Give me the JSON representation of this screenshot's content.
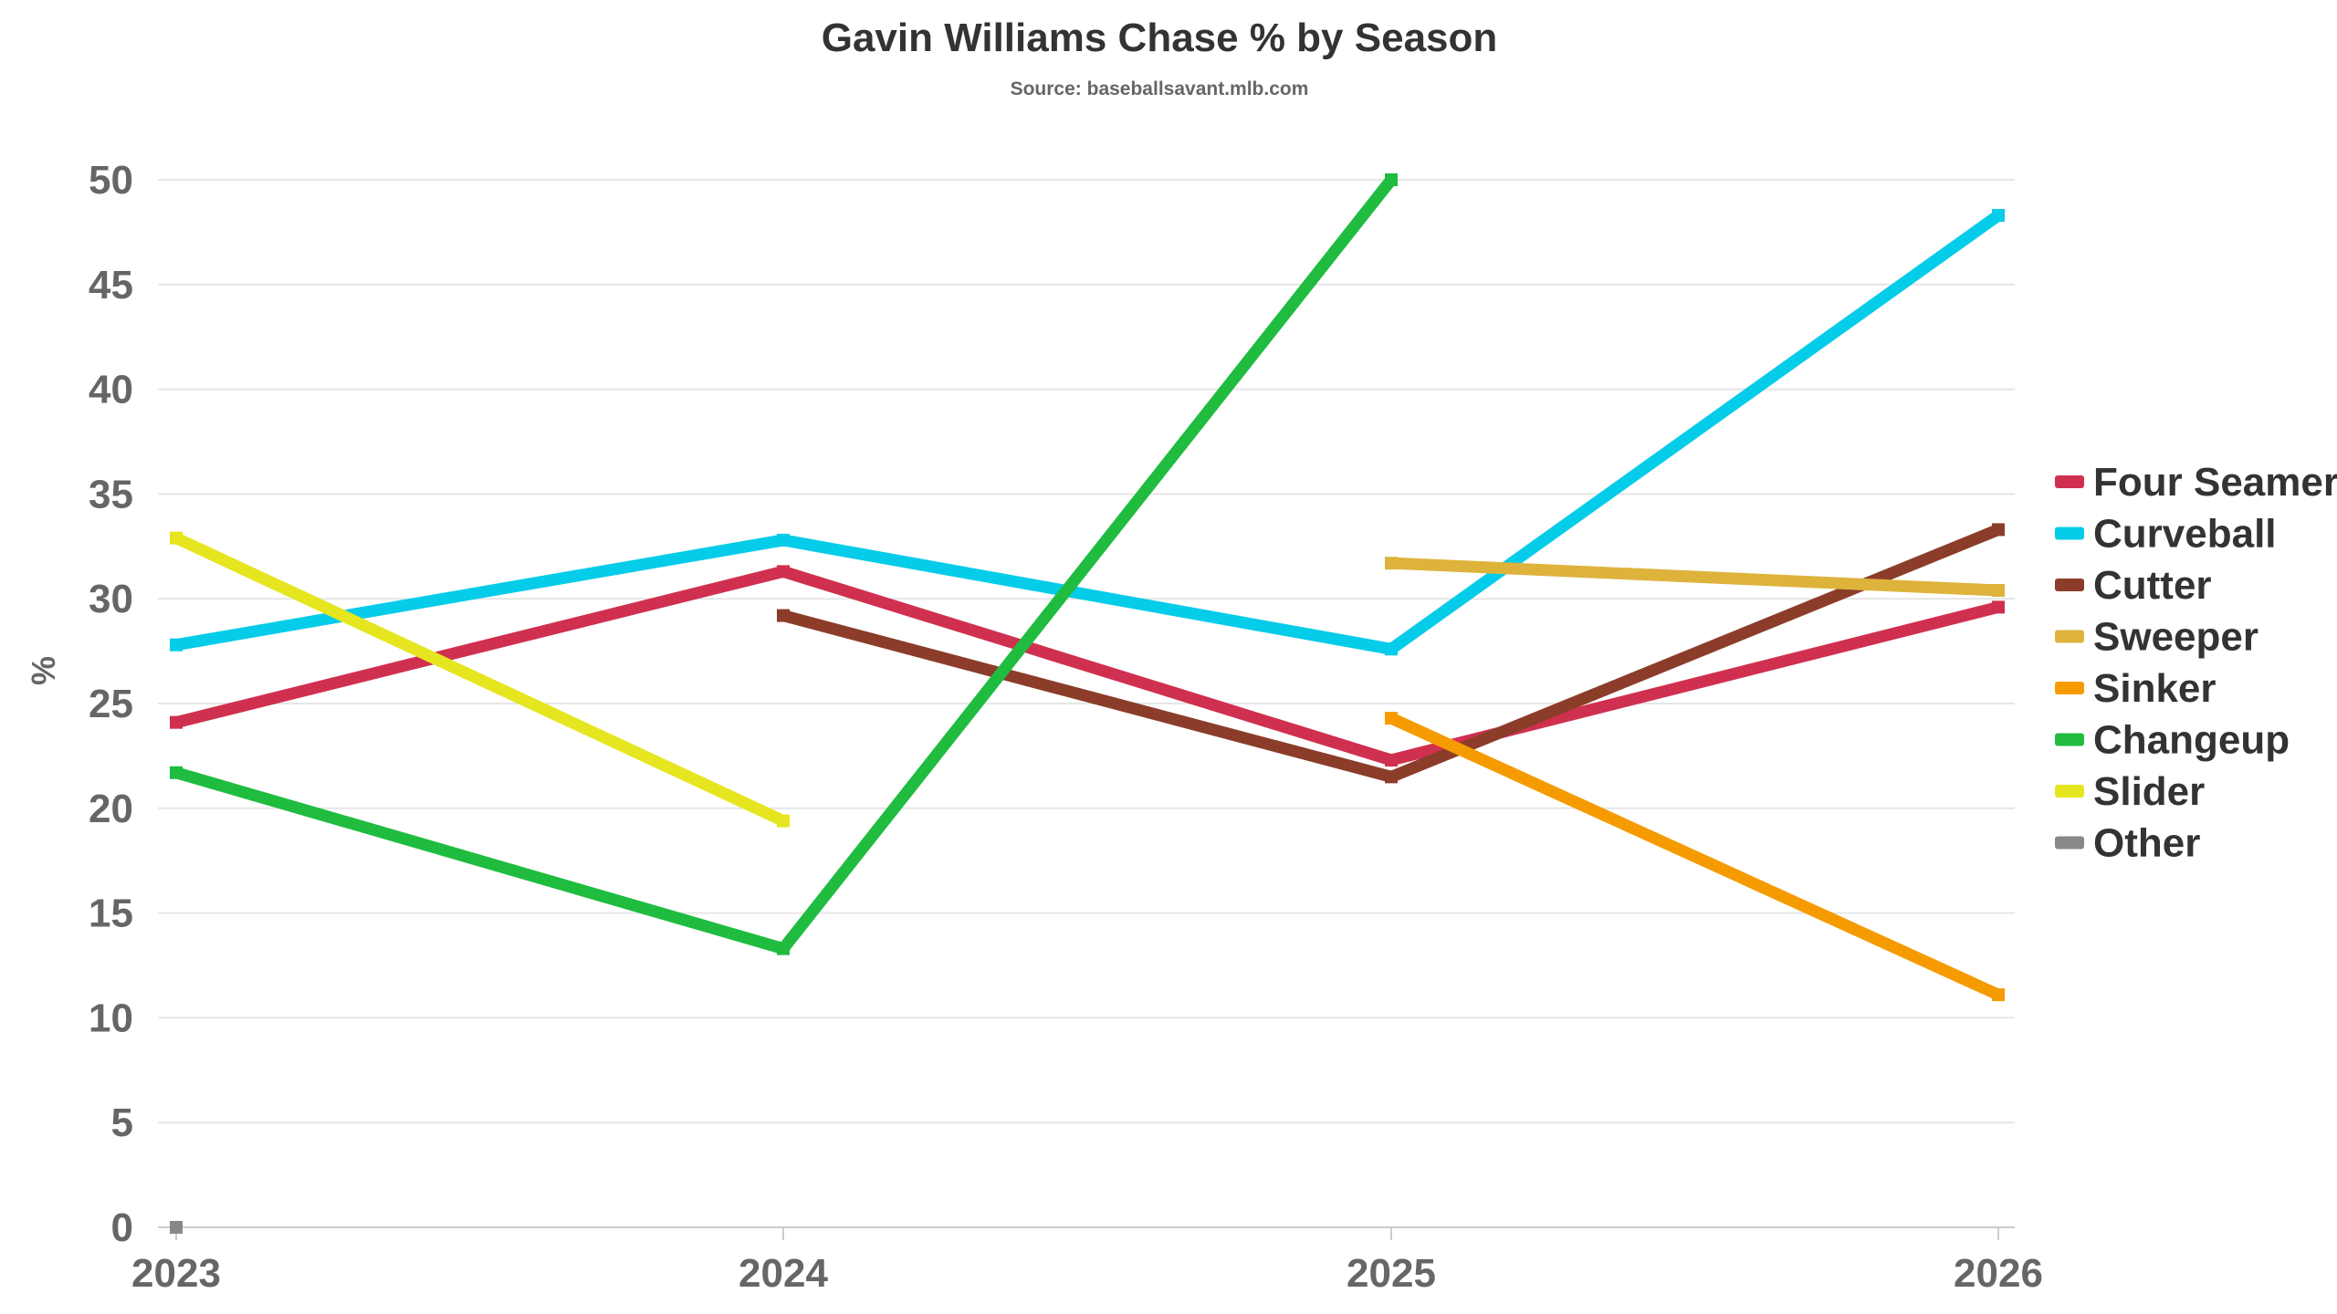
{
  "chart_data": {
    "type": "line",
    "title": "Gavin Williams Chase % by Season",
    "subtitle": "Source: baseballsavant.mlb.com",
    "xlabel": "",
    "ylabel": "%",
    "x": [
      "2023",
      "2024",
      "2025",
      "2026"
    ],
    "ylim": [
      0,
      50
    ],
    "yticks": [
      0,
      5,
      10,
      15,
      20,
      25,
      30,
      35,
      40,
      45,
      50
    ],
    "grid": true,
    "legend_position": "right",
    "series": [
      {
        "name": "Four Seamer",
        "color": "#d0304f",
        "values": [
          24.1,
          31.3,
          22.3,
          29.6
        ]
      },
      {
        "name": "Curveball",
        "color": "#05cce8",
        "values": [
          27.8,
          32.8,
          27.6,
          48.3
        ]
      },
      {
        "name": "Cutter",
        "color": "#8b3d2a",
        "values": [
          null,
          29.2,
          21.5,
          33.3
        ]
      },
      {
        "name": "Sweeper",
        "color": "#ddb33b",
        "values": [
          null,
          null,
          31.7,
          30.4
        ]
      },
      {
        "name": "Sinker",
        "color": "#f59b00",
        "values": [
          null,
          null,
          24.3,
          11.1
        ]
      },
      {
        "name": "Changeup",
        "color": "#1fbc3f",
        "values": [
          21.7,
          13.3,
          50.0,
          null
        ]
      },
      {
        "name": "Slider",
        "color": "#e6e620",
        "values": [
          32.9,
          19.4,
          null,
          null
        ]
      },
      {
        "name": "Other",
        "color": "#888888",
        "values": [
          0.0,
          null,
          null,
          null
        ]
      }
    ]
  }
}
